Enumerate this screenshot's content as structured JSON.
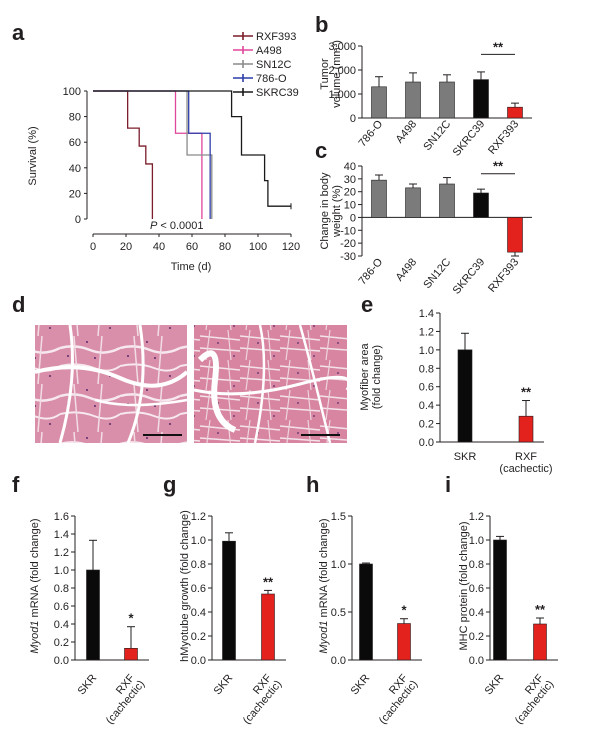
{
  "figure": {
    "colors": {
      "black": "#0a0a0a",
      "gray": "#7b7b7b",
      "red": "#e3221e",
      "rxf393": "#7b1d2a",
      "a498": "#e0469a",
      "sn12c": "#8a8a8a",
      "o786": "#2c3da8",
      "skrc39": "#1a1a1a"
    },
    "panels": {
      "a": {
        "label": "a",
        "legend": [
          "RXF393",
          "A498",
          "SN12C",
          "786-O",
          "SKRC39"
        ],
        "pvalue_p": "P",
        "pvalue_rest": " < 0.0001",
        "xlabel": "Time (d)",
        "ylabel": "Survival (%)"
      },
      "b": {
        "label": "b",
        "ylabel_line1": "Tumor",
        "ylabel_line2": "volume (mm³)",
        "sig": "**"
      },
      "c": {
        "label": "c",
        "ylabel_line1": "Change in body",
        "ylabel_line2": "weight (%)",
        "sig": "**"
      },
      "d": {
        "label": "d"
      },
      "e": {
        "label": "e",
        "ylabel_line1": "Myofiber area",
        "ylabel_line2": "(fold change)",
        "sig": "**"
      },
      "f": {
        "label": "f",
        "ylabel_gene": "Myod1",
        "ylabel_rest": " mRNA (fold change)",
        "sig": "*"
      },
      "g": {
        "label": "g",
        "ylabel": "hMyotube growth (fold change)",
        "sig": "**"
      },
      "h": {
        "label": "h",
        "ylabel_gene": "Myod1",
        "ylabel_rest": " mRNA (fold change)",
        "sig": "*"
      },
      "i": {
        "label": "i",
        "ylabel": "MHC protein (fold change)",
        "sig": "**"
      }
    },
    "cachexia_labels": [
      "SKR",
      "RXF",
      "(cachectic)"
    ]
  },
  "chart_data": [
    {
      "panel": "a",
      "type": "line",
      "title": "",
      "xlabel": "Time (d)",
      "ylabel": "Survival (%)",
      "xlim": [
        0,
        120
      ],
      "ylim": [
        0,
        100
      ],
      "xticks": [
        0,
        20,
        40,
        60,
        80,
        100,
        120
      ],
      "yticks": [
        0,
        20,
        40,
        60,
        80,
        100
      ],
      "series": [
        {
          "name": "RXF393",
          "x": [
            0,
            21,
            21,
            28,
            28,
            32,
            32,
            36,
            36
          ],
          "y": [
            100,
            100,
            71,
            71,
            57,
            57,
            43,
            43,
            0
          ]
        },
        {
          "name": "A498",
          "x": [
            0,
            50,
            50,
            66,
            66
          ],
          "y": [
            100,
            100,
            67,
            67,
            0
          ]
        },
        {
          "name": "SN12C",
          "x": [
            0,
            57,
            57,
            72,
            72
          ],
          "y": [
            100,
            100,
            50,
            50,
            0
          ]
        },
        {
          "name": "786-O",
          "x": [
            0,
            58,
            58,
            71,
            71
          ],
          "y": [
            100,
            100,
            67,
            67,
            0
          ]
        },
        {
          "name": "SKRC39",
          "x": [
            0,
            84,
            84,
            90,
            90,
            104,
            104,
            106,
            106,
            120
          ],
          "y": [
            100,
            100,
            80,
            80,
            50,
            50,
            30,
            30,
            10,
            10
          ]
        }
      ],
      "annotation": "P < 0.0001"
    },
    {
      "panel": "b",
      "type": "bar",
      "title": "",
      "ylabel": "Tumor volume (mm³)",
      "ylim": [
        0,
        3000
      ],
      "yticks": [
        0,
        1000,
        2000,
        3000
      ],
      "ytick_labels": [
        "0",
        "1,000",
        "2,000",
        "3,000"
      ],
      "categories": [
        "786-O",
        "A498",
        "SN12C",
        "SKRC39",
        "RXF393"
      ],
      "values": [
        1300,
        1500,
        1500,
        1600,
        450
      ],
      "errors": [
        420,
        380,
        300,
        320,
        170
      ],
      "significance": {
        "between": [
          3,
          4
        ],
        "label": "**"
      }
    },
    {
      "panel": "c",
      "type": "bar",
      "title": "",
      "ylabel": "Change in body weight (%)",
      "ylim": [
        -30,
        40
      ],
      "yticks": [
        -30,
        -20,
        -10,
        0,
        10,
        20,
        30,
        40
      ],
      "categories": [
        "786-O",
        "A498",
        "SN12C",
        "SKRC39",
        "RXF393"
      ],
      "values": [
        29,
        23,
        26,
        19,
        -27
      ],
      "errors": [
        4,
        3,
        5,
        3,
        3
      ],
      "significance": {
        "between": [
          3,
          4
        ],
        "label": "**"
      }
    },
    {
      "panel": "e",
      "type": "bar",
      "title": "",
      "ylabel": "Myofiber area (fold change)",
      "ylim": [
        0,
        1.4
      ],
      "yticks": [
        0,
        0.2,
        0.4,
        0.6,
        0.8,
        1.0,
        1.2,
        1.4
      ],
      "categories": [
        "SKR",
        "RXF (cachectic)"
      ],
      "values": [
        1.0,
        0.28
      ],
      "errors": [
        0.18,
        0.17
      ],
      "significance": {
        "bar": 1,
        "label": "**"
      }
    },
    {
      "panel": "f",
      "type": "bar",
      "title": "",
      "ylabel": "Myod1 mRNA (fold change)",
      "ylim": [
        0,
        1.6
      ],
      "yticks": [
        0,
        0.2,
        0.4,
        0.6,
        0.8,
        1.0,
        1.2,
        1.4,
        1.6
      ],
      "categories": [
        "SKR",
        "RXF (cachectic)"
      ],
      "values": [
        1.0,
        0.13
      ],
      "errors": [
        0.33,
        0.24
      ],
      "significance": {
        "bar": 1,
        "label": "*"
      }
    },
    {
      "panel": "g",
      "type": "bar",
      "title": "",
      "ylabel": "hMyotube growth (fold change)",
      "ylim": [
        0,
        1.2
      ],
      "yticks": [
        0,
        0.2,
        0.4,
        0.6,
        0.8,
        1.0,
        1.2
      ],
      "categories": [
        "SKR",
        "RXF (cachectic)"
      ],
      "values": [
        0.99,
        0.55
      ],
      "errors": [
        0.07,
        0.03
      ],
      "significance": {
        "bar": 1,
        "label": "**"
      }
    },
    {
      "panel": "h",
      "type": "bar",
      "title": "",
      "ylabel": "Myod1 mRNA (fold change)",
      "ylim": [
        0,
        1.5
      ],
      "yticks": [
        0,
        0.5,
        1.0,
        1.5
      ],
      "categories": [
        "SKR",
        "RXF (cachectic)"
      ],
      "values": [
        1.0,
        0.38
      ],
      "errors": [
        0.01,
        0.05
      ],
      "significance": {
        "bar": 1,
        "label": "*"
      }
    },
    {
      "panel": "i",
      "type": "bar",
      "title": "",
      "ylabel": "MHC protein (fold change)",
      "ylim": [
        0,
        1.2
      ],
      "yticks": [
        0,
        0.2,
        0.4,
        0.6,
        0.8,
        1.0,
        1.2
      ],
      "categories": [
        "SKR",
        "RXF (cachectic)"
      ],
      "values": [
        1.0,
        0.3
      ],
      "errors": [
        0.03,
        0.05
      ],
      "significance": {
        "bar": 1,
        "label": "**"
      }
    }
  ]
}
